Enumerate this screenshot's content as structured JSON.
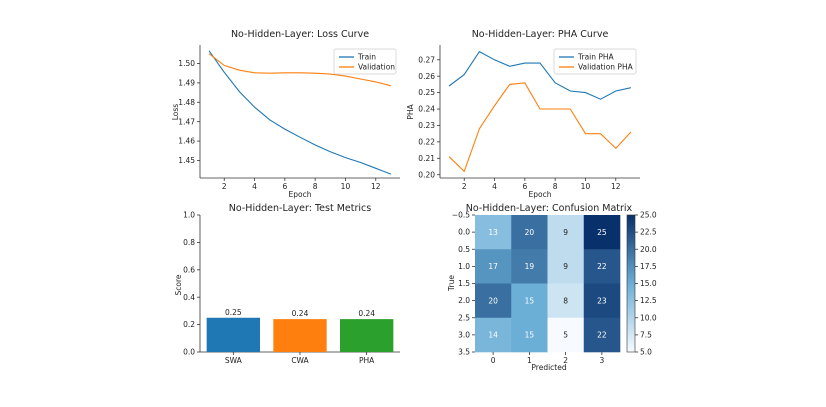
{
  "colors": {
    "blue": "#1f77b4",
    "orange": "#ff7f0e",
    "green": "#2ca02c",
    "spine": "#333333",
    "cm_low": "#f7fbff",
    "cm_high": "#08306b"
  },
  "chart_data": [
    {
      "type": "line",
      "title": "No-Hidden-Layer: Loss Curve",
      "xlabel": "Epoch",
      "ylabel": "Loss",
      "xlim": [
        0.4,
        13.6
      ],
      "ylim": [
        1.441,
        1.5095
      ],
      "xticks": [
        2,
        4,
        6,
        8,
        10,
        12
      ],
      "yticks": [
        1.45,
        1.46,
        1.47,
        1.48,
        1.49,
        1.5
      ],
      "ytick_labels": [
        "1.45",
        "1.46",
        "1.47",
        "1.48",
        "1.49",
        "1.50"
      ],
      "grid": false,
      "legend": "top-right",
      "x": [
        1,
        2,
        3,
        4,
        5,
        6,
        7,
        8,
        9,
        10,
        11,
        12,
        13
      ],
      "series": [
        {
          "name": "Train",
          "color": "#1f77b4",
          "values": [
            1.5065,
            1.4955,
            1.4855,
            1.4775,
            1.471,
            1.4662,
            1.462,
            1.458,
            1.4545,
            1.4515,
            1.449,
            1.446,
            1.443
          ]
        },
        {
          "name": "Validation",
          "color": "#ff7f0e",
          "values": [
            1.505,
            1.499,
            1.4965,
            1.4952,
            1.495,
            1.4952,
            1.4952,
            1.495,
            1.4945,
            1.4935,
            1.492,
            1.4905,
            1.4885
          ]
        }
      ]
    },
    {
      "type": "line",
      "title": "No-Hidden-Layer: PHA Curve",
      "xlabel": "Epoch",
      "ylabel": "PHA",
      "xlim": [
        0.4,
        13.6
      ],
      "ylim": [
        0.198,
        0.279
      ],
      "xticks": [
        2,
        4,
        6,
        8,
        10,
        12
      ],
      "yticks": [
        0.2,
        0.21,
        0.22,
        0.23,
        0.24,
        0.25,
        0.26,
        0.27
      ],
      "ytick_labels": [
        "0.20",
        "0.21",
        "0.22",
        "0.23",
        "0.24",
        "0.25",
        "0.26",
        "0.27"
      ],
      "grid": false,
      "legend": "top-right",
      "x": [
        1,
        2,
        3,
        4,
        5,
        6,
        7,
        8,
        9,
        10,
        11,
        12,
        13
      ],
      "series": [
        {
          "name": "Train PHA",
          "color": "#1f77b4",
          "values": [
            0.254,
            0.261,
            0.275,
            0.27,
            0.266,
            0.268,
            0.268,
            0.256,
            0.251,
            0.25,
            0.246,
            0.251,
            0.253
          ]
        },
        {
          "name": "Validation PHA",
          "color": "#ff7f0e",
          "values": [
            0.211,
            0.202,
            0.228,
            0.242,
            0.255,
            0.256,
            0.24,
            0.24,
            0.24,
            0.225,
            0.225,
            0.216,
            0.226
          ]
        }
      ]
    },
    {
      "type": "bar",
      "title": "No-Hidden-Layer: Test Metrics",
      "xlabel": "",
      "ylabel": "Score",
      "ylim": [
        0.0,
        1.0
      ],
      "yticks": [
        0.0,
        0.2,
        0.4,
        0.6,
        0.8,
        1.0
      ],
      "ytick_labels": [
        "0.0",
        "0.2",
        "0.4",
        "0.6",
        "0.8",
        "1.0"
      ],
      "grid": false,
      "categories": [
        "SWA",
        "CWA",
        "PHA"
      ],
      "values": [
        0.25,
        0.24,
        0.24
      ],
      "value_labels": [
        "0.25",
        "0.24",
        "0.24"
      ],
      "colors": [
        "#1f77b4",
        "#ff7f0e",
        "#2ca02c"
      ]
    },
    {
      "type": "heatmap",
      "title": "No-Hidden-Layer: Confusion Matrix",
      "xlabel": "Predicted",
      "ylabel": "True",
      "xticks": [
        0,
        1,
        2,
        3
      ],
      "xtick_labels": [
        "0",
        "1",
        "2",
        "3"
      ],
      "yticks": [
        -0.5,
        0.0,
        0.5,
        1.0,
        1.5,
        2.0,
        2.5,
        3.0,
        3.5
      ],
      "ytick_labels": [
        "−0.5",
        "0.0",
        "0.5",
        "1.0",
        "1.5",
        "2.0",
        "2.5",
        "3.0",
        "3.5"
      ],
      "matrix": [
        [
          13,
          20,
          9,
          25
        ],
        [
          17,
          19,
          9,
          22
        ],
        [
          20,
          15,
          8,
          23
        ],
        [
          14,
          15,
          5,
          22
        ]
      ],
      "vmin": 5,
      "vmax": 25,
      "colorbar_ticks": [
        5.0,
        7.5,
        10.0,
        12.5,
        15.0,
        17.5,
        20.0,
        22.5,
        25.0
      ],
      "colorbar_tick_labels": [
        "5.0",
        "7.5",
        "10.0",
        "12.5",
        "15.0",
        "17.5",
        "20.0",
        "22.5",
        "25.0"
      ]
    }
  ]
}
